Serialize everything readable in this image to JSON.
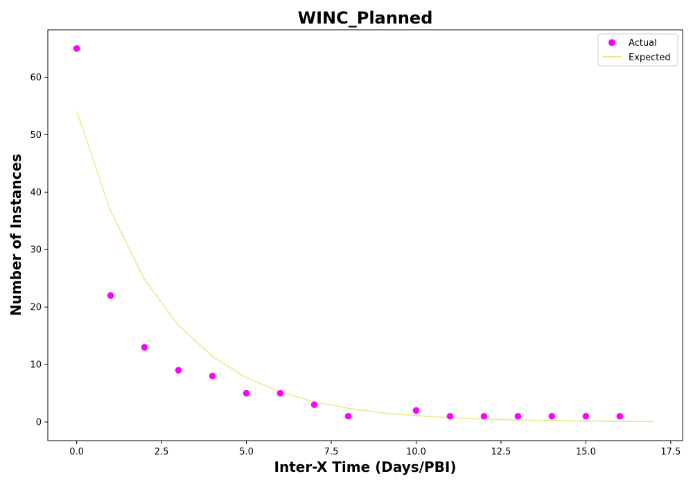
{
  "chart_data": {
    "type": "scatter",
    "title": "WINC_Planned",
    "xlabel": "Inter-X Time (Days/PBI)",
    "ylabel": "Number of Instances",
    "xlim": [
      -0.85,
      17.85
    ],
    "ylim": [
      -3.25,
      68.25
    ],
    "xticks": [
      0.0,
      2.5,
      5.0,
      7.5,
      10.0,
      12.5,
      15.0,
      17.5
    ],
    "xtick_labels": [
      "0.0",
      "2.5",
      "5.0",
      "7.5",
      "10.0",
      "12.5",
      "15.0",
      "17.5"
    ],
    "yticks": [
      0,
      10,
      20,
      30,
      40,
      50,
      60
    ],
    "ytick_labels": [
      "0",
      "10",
      "20",
      "30",
      "40",
      "50",
      "60"
    ],
    "grid": false,
    "legend_position": "top-right",
    "series": [
      {
        "name": "Actual",
        "kind": "scatter",
        "color": "#ff00ff",
        "x": [
          0,
          1,
          2,
          3,
          4,
          5,
          6,
          7,
          8,
          10,
          11,
          12,
          13,
          14,
          15,
          16
        ],
        "y": [
          65,
          22,
          13,
          9,
          8,
          5,
          5,
          3,
          1,
          2,
          1,
          1,
          1,
          1,
          1,
          1
        ]
      },
      {
        "name": "Expected",
        "kind": "line",
        "color": "#f0e68c",
        "x": [
          0,
          1,
          2,
          3,
          4,
          5,
          6,
          7,
          8,
          9,
          10,
          11,
          12,
          13,
          14,
          15,
          16,
          17
        ],
        "y": [
          54.1,
          36.7,
          24.8,
          16.8,
          11.4,
          7.7,
          5.2,
          3.5,
          2.4,
          1.6,
          1.1,
          0.75,
          0.5,
          0.35,
          0.24,
          0.16,
          0.11,
          0.07
        ]
      }
    ]
  }
}
